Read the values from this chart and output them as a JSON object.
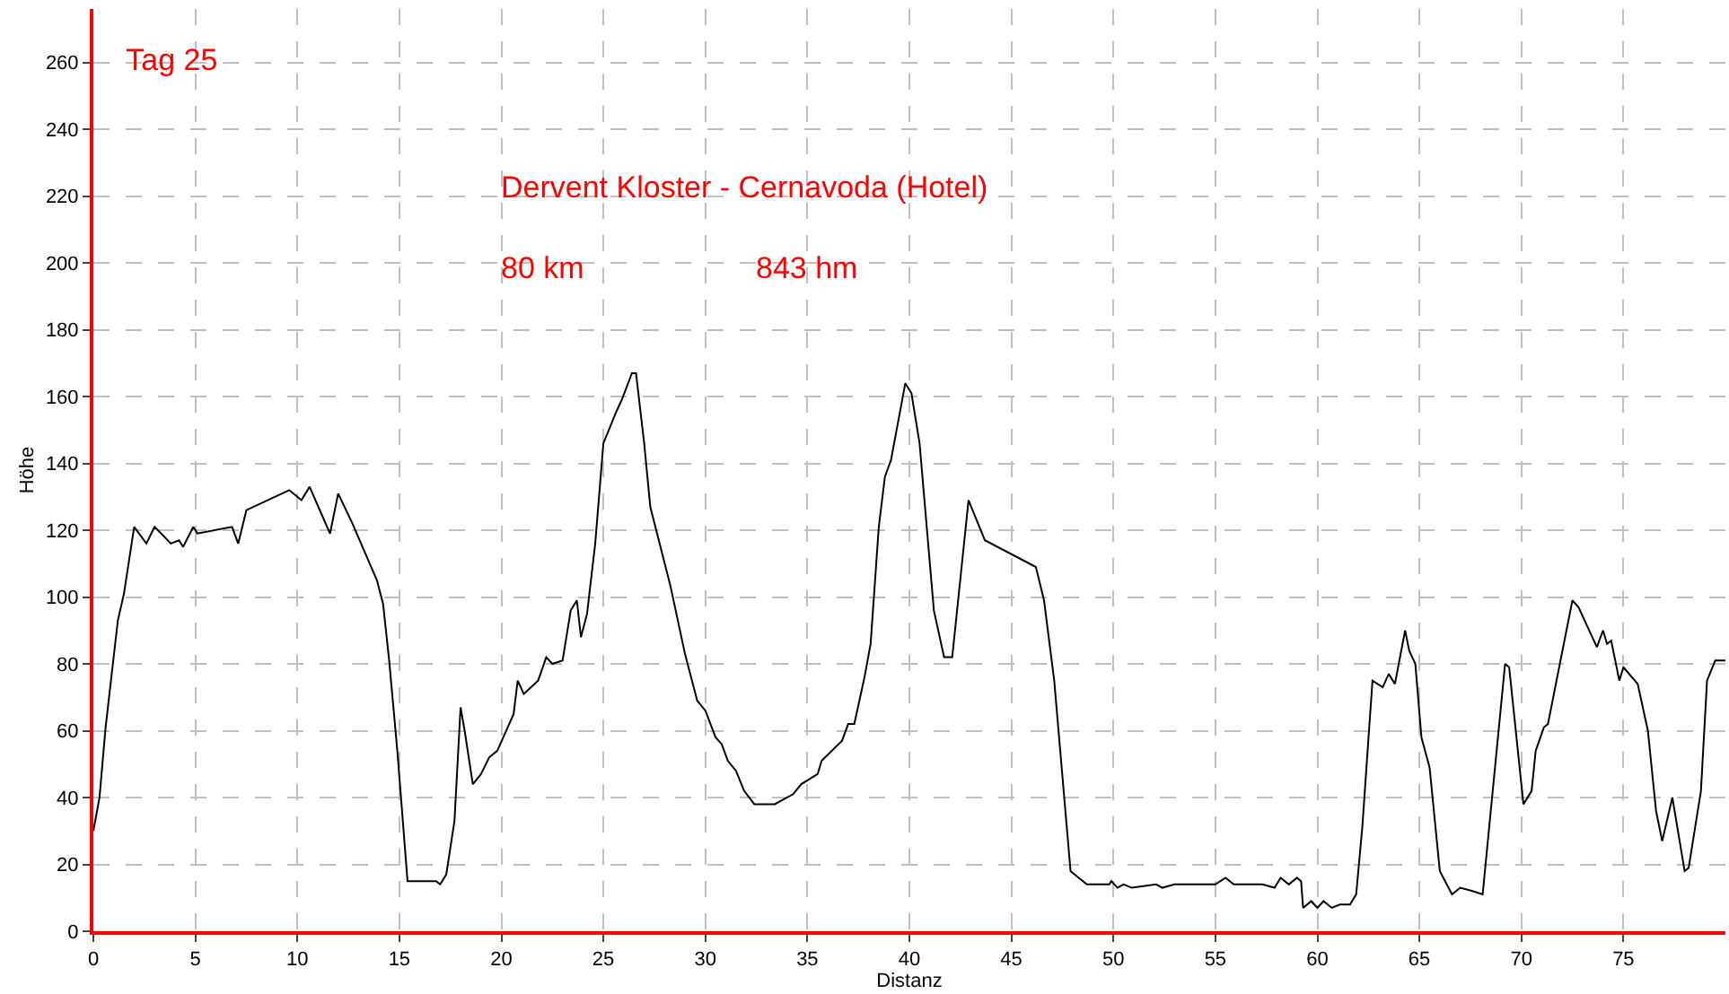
{
  "chart_data": {
    "type": "line",
    "title": "Tag 25",
    "xlabel": "Distanz",
    "ylabel": "Höhe",
    "annotations": [
      "Dervent Kloster - Cernavoda (Hotel)",
      "80 km",
      "843 hm"
    ],
    "x": [
      0,
      0.3,
      0.6,
      1.2,
      1.5,
      2.0,
      2.6,
      3.0,
      3.8,
      4.2,
      4.4,
      4.9,
      5.1,
      6.8,
      7.1,
      7.5,
      9.6,
      10.2,
      10.6,
      11.6,
      12.0,
      12.7,
      13.9,
      14.2,
      14.5,
      14.9,
      15.4,
      16.8,
      17.0,
      17.3,
      17.7,
      18.0,
      18.2,
      18.6,
      19.0,
      19.4,
      19.8,
      20.6,
      20.8,
      21.1,
      21.8,
      22.2,
      22.5,
      23.0,
      23.4,
      23.7,
      23.9,
      24.2,
      24.6,
      25.0,
      25.6,
      25.9,
      26.4,
      26.6,
      27.0,
      27.3,
      28.3,
      29.0,
      29.6,
      30.0,
      30.5,
      30.8,
      31.1,
      31.5,
      31.9,
      32.4,
      33.4,
      34.3,
      34.7,
      35.5,
      35.7,
      36.7,
      37.0,
      37.3,
      37.8,
      38.1,
      38.5,
      38.8,
      39.1,
      39.8,
      40.1,
      40.5,
      41.2,
      41.7,
      42.1,
      42.9,
      43.7,
      46.2,
      46.6,
      47.1,
      47.9,
      48.3,
      48.7,
      49.8,
      49.9,
      50.2,
      50.5,
      50.9,
      52.1,
      52.4,
      53.0,
      55.0,
      55.5,
      55.9,
      57.3,
      57.9,
      58.2,
      58.6,
      59.0,
      59.2,
      59.3,
      59.7,
      60.0,
      60.3,
      60.7,
      61.1,
      61.6,
      61.9,
      62.2,
      62.7,
      63.2,
      63.5,
      63.8,
      64.3,
      64.5,
      64.8,
      65.1,
      65.5,
      66.0,
      66.6,
      67.0,
      67.6,
      68.1,
      69.2,
      69.4,
      70.1,
      70.5,
      70.7,
      71.1,
      71.3,
      72.5,
      72.8,
      73.7,
      74.0,
      74.2,
      74.4,
      74.8,
      75.0,
      75.7,
      76.2,
      76.6,
      76.9,
      77.4,
      78.0,
      78.2,
      78.8,
      79.1,
      79.5,
      80.0
    ],
    "series": [
      {
        "color": "#000000",
        "values": [
          30,
          40,
          61,
          93,
          101,
          121,
          116,
          121,
          116,
          117,
          115,
          121,
          119,
          121,
          116,
          126,
          132,
          129,
          133,
          119,
          131,
          122,
          105,
          98,
          81,
          54,
          15,
          15,
          14,
          17,
          33,
          67,
          60,
          44,
          47,
          52,
          54,
          65,
          75,
          71,
          75,
          82,
          80,
          81,
          96,
          99,
          88,
          95,
          116,
          146,
          155,
          159,
          167,
          167,
          146,
          127,
          103,
          83,
          69,
          66,
          58,
          56,
          51,
          48,
          42,
          38,
          38,
          41,
          44,
          47,
          51,
          57,
          62,
          62,
          76,
          86,
          121,
          136,
          141,
          164,
          161,
          146,
          96,
          82,
          82,
          129,
          117,
          109,
          99,
          75,
          18,
          16,
          14,
          14,
          15,
          13,
          14,
          13,
          14,
          13,
          14,
          14,
          16,
          14,
          14,
          13,
          16,
          14,
          16,
          15,
          7,
          9,
          7,
          9,
          7,
          8,
          8,
          11,
          31,
          75,
          73,
          77,
          74,
          90,
          84,
          80,
          58,
          49,
          18,
          11,
          13,
          12,
          11,
          80,
          79,
          38,
          42,
          54,
          61,
          62,
          99,
          97,
          85,
          90,
          86,
          87,
          75,
          79,
          74,
          60,
          36,
          27,
          40,
          18,
          19,
          42,
          75,
          81,
          81
        ]
      }
    ],
    "xlim": [
      0,
      80
    ],
    "ylim": [
      0,
      276
    ],
    "xticks": [
      0,
      5,
      10,
      15,
      20,
      25,
      30,
      35,
      40,
      45,
      50,
      55,
      60,
      65,
      70,
      75
    ],
    "yticks": [
      0,
      20,
      40,
      60,
      80,
      100,
      120,
      140,
      160,
      180,
      200,
      220,
      240,
      260
    ],
    "grid": true,
    "marker": "none",
    "line_style": "solid"
  }
}
